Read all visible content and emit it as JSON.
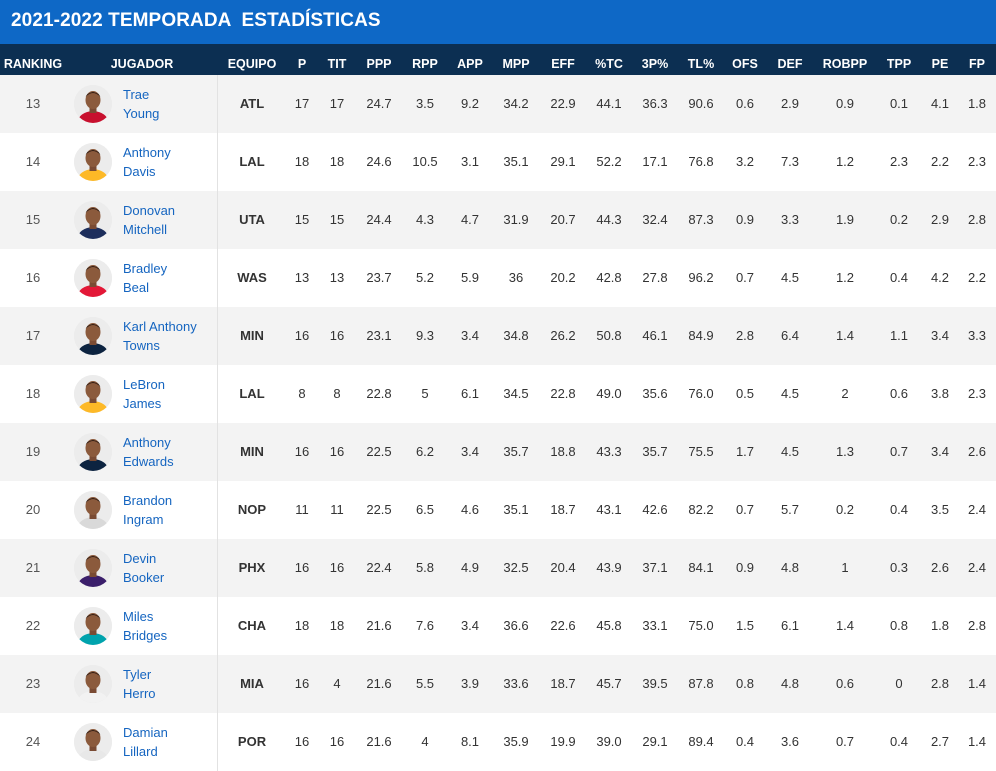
{
  "title": "2021-2022 TEMPORADA  ESTADÍSTICAS",
  "columns": [
    "RANKING",
    "JUGADOR",
    "EQUIPO",
    "P",
    "TIT",
    "PPP",
    "RPP",
    "APP",
    "MPP",
    "EFF",
    "%TC",
    "3P%",
    "TL%",
    "OFS",
    "DEF",
    "ROBPP",
    "TPP",
    "PE",
    "FP"
  ],
  "rows": [
    {
      "rank": "13",
      "first": "Trae",
      "last": "Young",
      "team": "ATL",
      "jersey": "#c8102e",
      "stats": [
        "17",
        "17",
        "24.7",
        "3.5",
        "9.2",
        "34.2",
        "22.9",
        "44.1",
        "36.3",
        "90.6",
        "0.6",
        "2.9",
        "0.9",
        "0.1",
        "4.1",
        "1.8"
      ]
    },
    {
      "rank": "14",
      "first": "Anthony",
      "last": "Davis",
      "team": "LAL",
      "jersey": "#fdb927",
      "stats": [
        "18",
        "18",
        "24.6",
        "10.5",
        "3.1",
        "35.1",
        "29.1",
        "52.2",
        "17.1",
        "76.8",
        "3.2",
        "7.3",
        "1.2",
        "2.3",
        "2.2",
        "2.3"
      ]
    },
    {
      "rank": "15",
      "first": "Donovan",
      "last": "Mitchell",
      "team": "UTA",
      "jersey": "#1d2e5c",
      "stats": [
        "15",
        "15",
        "24.4",
        "4.3",
        "4.7",
        "31.9",
        "20.7",
        "44.3",
        "32.4",
        "87.3",
        "0.9",
        "3.3",
        "1.9",
        "0.2",
        "2.9",
        "2.8"
      ]
    },
    {
      "rank": "16",
      "first": "Bradley",
      "last": "Beal",
      "team": "WAS",
      "jersey": "#e31837",
      "stats": [
        "13",
        "13",
        "23.7",
        "5.2",
        "5.9",
        "36",
        "20.2",
        "42.8",
        "27.8",
        "96.2",
        "0.7",
        "4.5",
        "1.2",
        "0.4",
        "4.2",
        "2.2"
      ]
    },
    {
      "rank": "17",
      "first": "Karl Anthony",
      "last": "Towns",
      "team": "MIN",
      "jersey": "#0c2340",
      "stats": [
        "16",
        "16",
        "23.1",
        "9.3",
        "3.4",
        "34.8",
        "26.2",
        "50.8",
        "46.1",
        "84.9",
        "2.8",
        "6.4",
        "1.4",
        "1.1",
        "3.4",
        "3.3"
      ]
    },
    {
      "rank": "18",
      "first": "LeBron",
      "last": "James",
      "team": "LAL",
      "jersey": "#fdb927",
      "stats": [
        "8",
        "8",
        "22.8",
        "5",
        "6.1",
        "34.5",
        "22.8",
        "49.0",
        "35.6",
        "76.0",
        "0.5",
        "4.5",
        "2",
        "0.6",
        "3.8",
        "2.3"
      ]
    },
    {
      "rank": "19",
      "first": "Anthony",
      "last": "Edwards",
      "team": "MIN",
      "jersey": "#0c2340",
      "stats": [
        "16",
        "16",
        "22.5",
        "6.2",
        "3.4",
        "35.7",
        "18.8",
        "43.3",
        "35.7",
        "75.5",
        "1.7",
        "4.5",
        "1.3",
        "0.7",
        "3.4",
        "2.6"
      ]
    },
    {
      "rank": "20",
      "first": "Brandon",
      "last": "Ingram",
      "team": "NOP",
      "jersey": "#d9d9d9",
      "stats": [
        "11",
        "11",
        "22.5",
        "6.5",
        "4.6",
        "35.1",
        "18.7",
        "43.1",
        "42.6",
        "82.2",
        "0.7",
        "5.7",
        "0.2",
        "0.4",
        "3.5",
        "2.4"
      ]
    },
    {
      "rank": "21",
      "first": "Devin",
      "last": "Booker",
      "team": "PHX",
      "jersey": "#3b1f6b",
      "stats": [
        "16",
        "16",
        "22.4",
        "5.8",
        "4.9",
        "32.5",
        "20.4",
        "43.9",
        "37.1",
        "84.1",
        "0.9",
        "4.8",
        "1",
        "0.3",
        "2.6",
        "2.4"
      ]
    },
    {
      "rank": "22",
      "first": "Miles",
      "last": "Bridges",
      "team": "CHA",
      "jersey": "#00a3ad",
      "stats": [
        "18",
        "18",
        "21.6",
        "7.6",
        "3.4",
        "36.6",
        "22.6",
        "45.8",
        "33.1",
        "75.0",
        "1.5",
        "6.1",
        "1.4",
        "0.8",
        "1.8",
        "2.8"
      ]
    },
    {
      "rank": "23",
      "first": "Tyler",
      "last": "Herro",
      "team": "MIA",
      "jersey": "#f2f2f2",
      "stats": [
        "16",
        "4",
        "21.6",
        "5.5",
        "3.9",
        "33.6",
        "18.7",
        "45.7",
        "39.5",
        "87.8",
        "0.8",
        "4.8",
        "0.6",
        "0",
        "2.8",
        "1.4"
      ]
    },
    {
      "rank": "24",
      "first": "Damian",
      "last": "Lillard",
      "team": "POR",
      "jersey": "#e8e8e8",
      "stats": [
        "16",
        "16",
        "21.6",
        "4",
        "8.1",
        "35.9",
        "19.9",
        "39.0",
        "29.1",
        "89.4",
        "0.4",
        "3.6",
        "0.7",
        "0.4",
        "2.7",
        "1.4"
      ]
    }
  ]
}
